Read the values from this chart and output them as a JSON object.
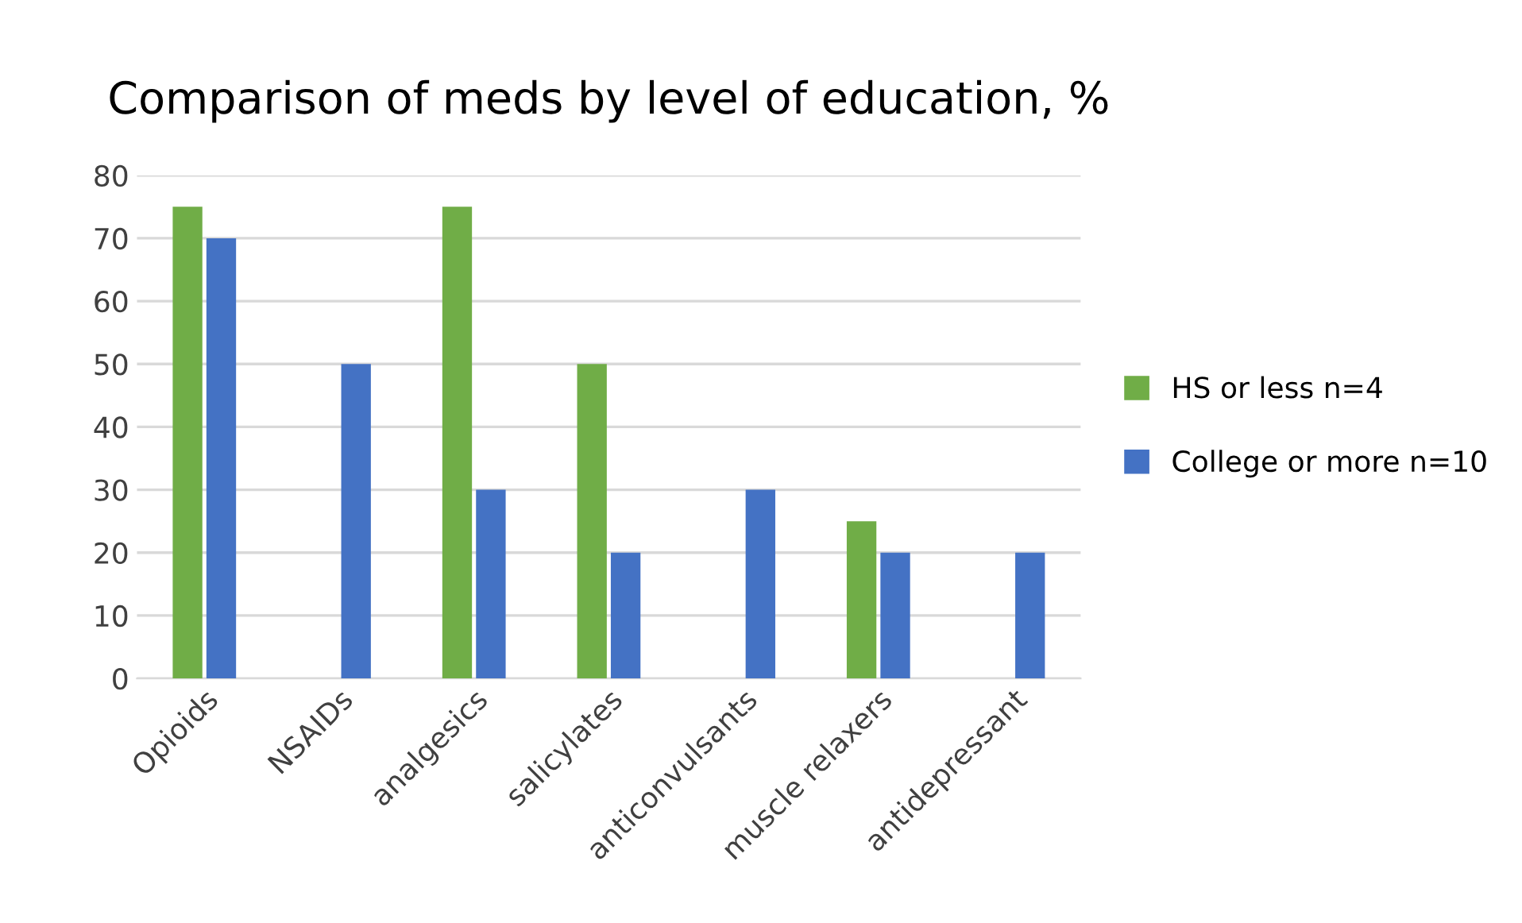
{
  "chart_data": {
    "type": "bar",
    "title": "Comparison of meds by level of education, %",
    "categories": [
      "Opioids",
      "NSAIDs",
      "analgesics",
      "salicylates",
      "anticonvulsants",
      "muscle relaxers",
      "antidepressant"
    ],
    "series": [
      {
        "name": "HS or less n=4",
        "color": "#70ad47",
        "values": [
          75,
          0,
          75,
          50,
          0,
          25,
          0
        ]
      },
      {
        "name": "College or more n=10",
        "color": "#4472c4",
        "values": [
          70,
          50,
          30,
          20,
          30,
          20,
          20
        ]
      }
    ],
    "ylim": [
      0,
      80
    ],
    "yticks": [
      0,
      10,
      20,
      30,
      40,
      50,
      60,
      70,
      80
    ],
    "grid": "y",
    "legend": "right"
  }
}
